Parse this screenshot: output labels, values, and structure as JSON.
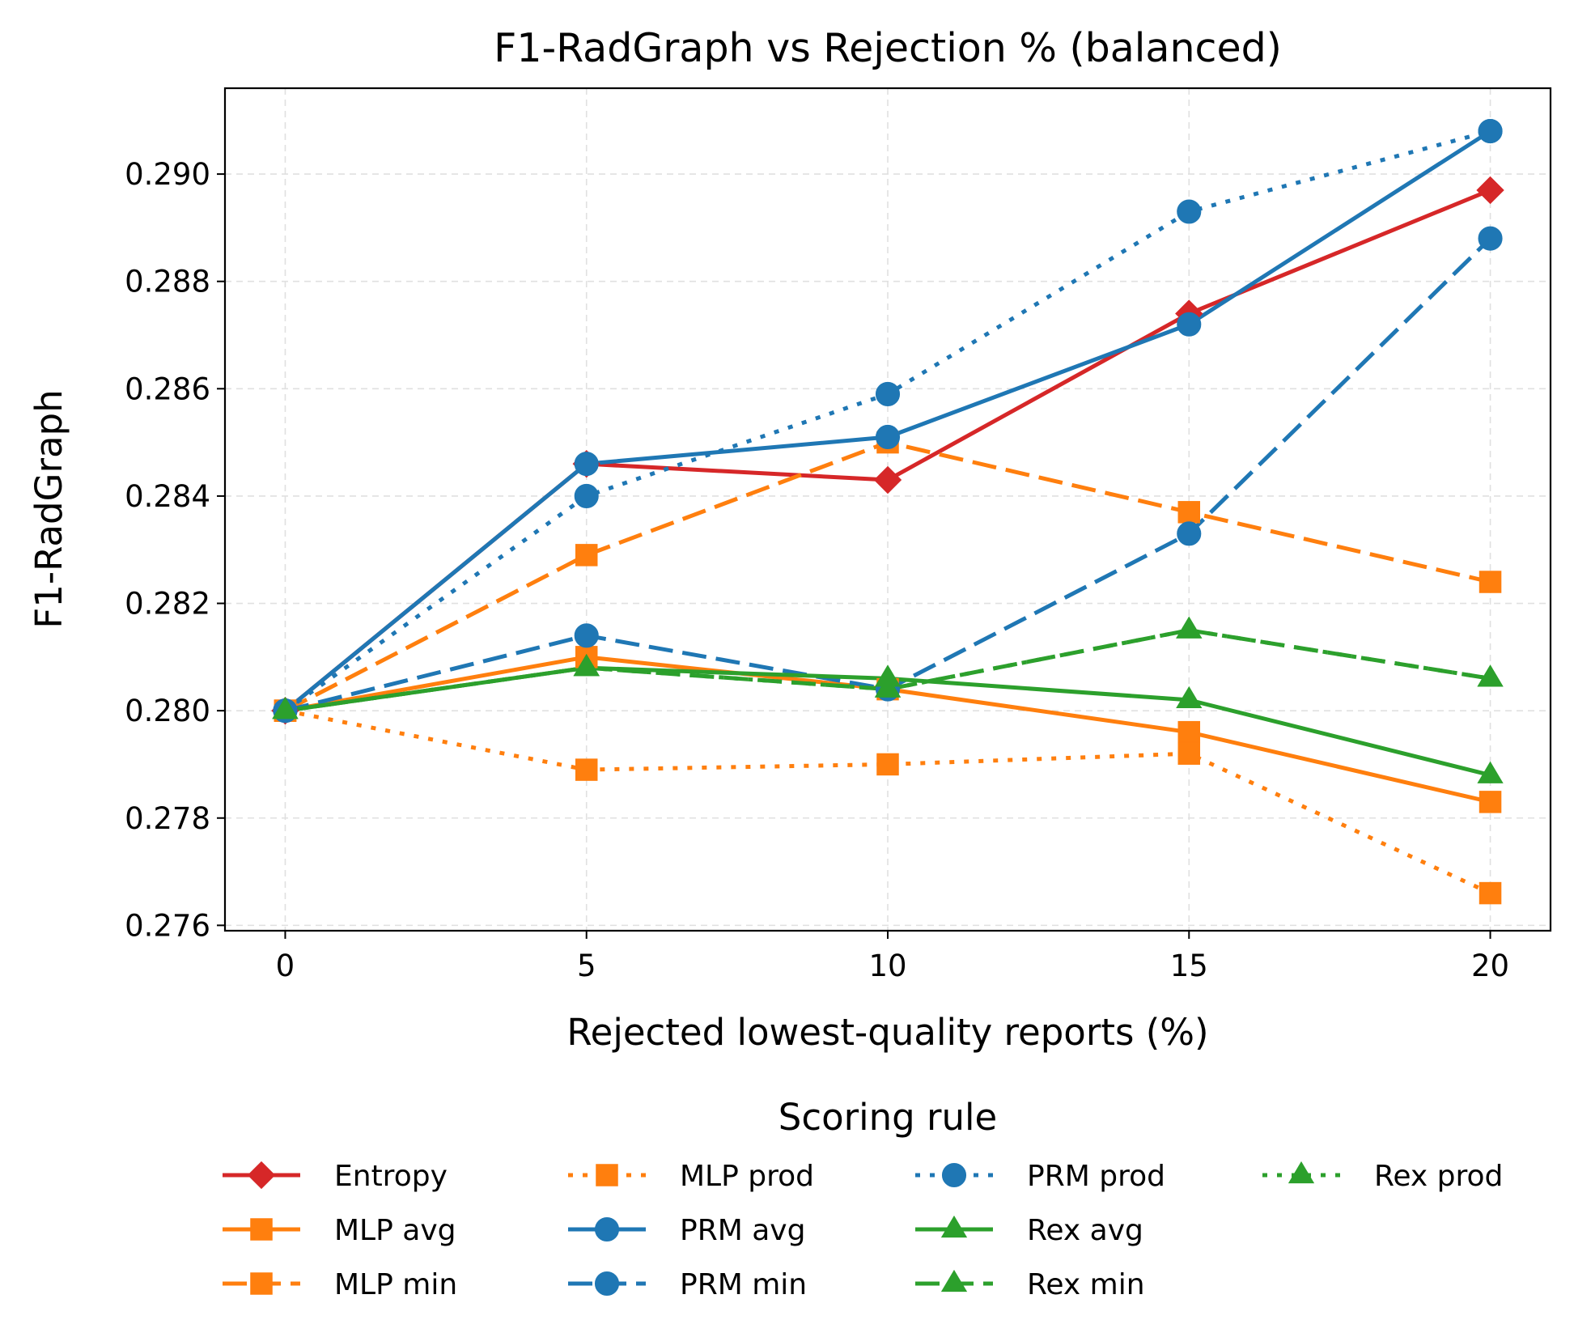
{
  "chart_data": {
    "type": "line",
    "title": "F1-RadGraph vs Rejection % (balanced)",
    "xlabel": "Rejected lowest-quality reports (%)",
    "ylabel": "F1-RadGraph",
    "x": [
      0,
      5,
      10,
      15,
      20
    ],
    "xlim": [
      -1,
      21
    ],
    "ylim": [
      0.2759,
      0.2916
    ],
    "xticks": [
      0,
      5,
      10,
      15,
      20
    ],
    "yticks": [
      0.276,
      0.278,
      0.28,
      0.282,
      0.284,
      0.286,
      0.288,
      0.29
    ],
    "ytick_labels": [
      "0.276",
      "0.278",
      "0.280",
      "0.282",
      "0.284",
      "0.286",
      "0.288",
      "0.290"
    ],
    "grid": true,
    "legend": {
      "title": "Scoring rule",
      "placement": "below-center",
      "columns": 4
    },
    "colors": {
      "red": "#d62728",
      "orange": "#ff7f0e",
      "blue": "#1f77b4",
      "green": "#2ca02c"
    },
    "series": [
      {
        "name": "Entropy",
        "color": "#d62728",
        "dash": "solid",
        "marker": "diamond",
        "values": [
          0.28,
          0.2846,
          0.2843,
          0.2874,
          0.2897
        ]
      },
      {
        "name": "MLP avg",
        "color": "#ff7f0e",
        "dash": "solid",
        "marker": "square",
        "values": [
          0.28,
          0.281,
          0.2804,
          0.2796,
          0.2783
        ]
      },
      {
        "name": "MLP min",
        "color": "#ff7f0e",
        "dash": "dashed",
        "marker": "square",
        "values": [
          0.28,
          0.2829,
          0.285,
          0.2837,
          0.2824
        ]
      },
      {
        "name": "MLP prod",
        "color": "#ff7f0e",
        "dash": "dotted",
        "marker": "square",
        "values": [
          0.28,
          0.2789,
          0.279,
          0.2792,
          0.2766
        ]
      },
      {
        "name": "PRM avg",
        "color": "#1f77b4",
        "dash": "solid",
        "marker": "circle",
        "values": [
          0.28,
          0.2846,
          0.2851,
          0.2872,
          0.2908
        ]
      },
      {
        "name": "PRM min",
        "color": "#1f77b4",
        "dash": "dashed",
        "marker": "circle",
        "values": [
          0.28,
          0.2814,
          0.2804,
          0.2833,
          0.2888
        ]
      },
      {
        "name": "PRM prod",
        "color": "#1f77b4",
        "dash": "dotted",
        "marker": "circle",
        "values": [
          0.28,
          0.284,
          0.2859,
          0.2893,
          0.2908
        ]
      },
      {
        "name": "Rex avg",
        "color": "#2ca02c",
        "dash": "solid",
        "marker": "triangle",
        "values": [
          0.28,
          0.2808,
          0.2806,
          0.2802,
          0.2788
        ]
      },
      {
        "name": "Rex min",
        "color": "#2ca02c",
        "dash": "dashed",
        "marker": "triangle",
        "values": [
          0.28,
          0.2808,
          0.2804,
          0.2815,
          0.2806
        ]
      },
      {
        "name": "Rex prod",
        "color": "#2ca02c",
        "dash": "dotted",
        "marker": "triangle",
        "values": [
          0.28,
          0.2808,
          0.2804,
          0.2815,
          0.2806
        ]
      }
    ]
  }
}
